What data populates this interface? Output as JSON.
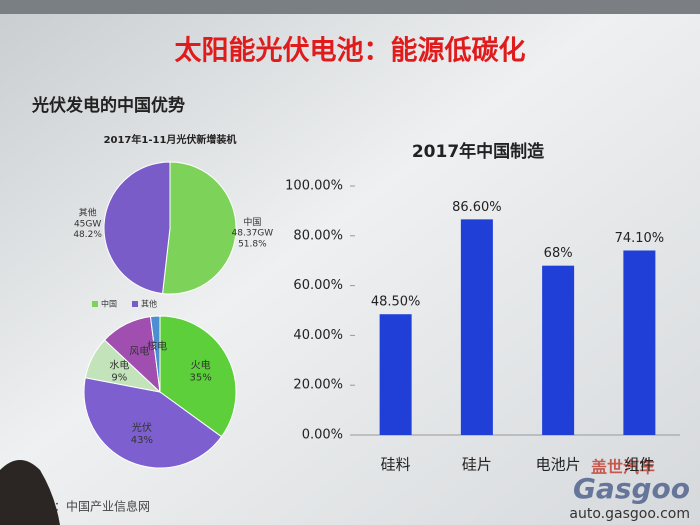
{
  "title": "太阳能光伏电池：能源低碳化",
  "subtitle": "光伏发电的中国优势",
  "source": "源：中国产业信息网",
  "watermark": {
    "cn": "盖世汽车",
    "brand": "Gasgoo",
    "url": "auto.gasgoo.com"
  },
  "chart_data": [
    {
      "type": "pie",
      "title": "2017年1-11月光伏新增装机",
      "categories": [
        "中国",
        "其他"
      ],
      "values": [
        51.8,
        48.2
      ],
      "value_labels": [
        "51.8%",
        "48.2%"
      ],
      "amounts": [
        "48.37GW",
        "45GW"
      ],
      "colors": [
        "#7dd35a",
        "#7a5cc8"
      ],
      "legend": "bottom"
    },
    {
      "type": "pie",
      "categories": [
        "火电",
        "光伏",
        "水电",
        "风电",
        "核电"
      ],
      "values": [
        35,
        43,
        9,
        11,
        2
      ],
      "value_labels": [
        "35%",
        "43%",
        "9%",
        null,
        null
      ],
      "colors": [
        "#5ccf3a",
        "#7d5fd0",
        "#c3e3bb",
        "#a04fb0",
        "#4b8fd0"
      ]
    },
    {
      "type": "bar",
      "title": "2017年中国制造",
      "categories": [
        "硅料",
        "硅片",
        "电池片",
        "组件"
      ],
      "values": [
        48.5,
        86.6,
        68,
        74.1
      ],
      "value_labels": [
        "48.50%",
        "86.60%",
        "68%",
        "74.10%"
      ],
      "color": "#1f3fd6",
      "ylim": [
        0,
        100
      ],
      "yticks": [
        {
          "value": 0,
          "label": "0.00%"
        },
        {
          "value": 20,
          "label": "20.00%"
        },
        {
          "value": 40,
          "label": "40.00%"
        },
        {
          "value": 60,
          "label": "60.00%"
        },
        {
          "value": 80,
          "label": "80.00%"
        },
        {
          "value": 100,
          "label": "100.00%"
        }
      ],
      "grid": false
    }
  ]
}
